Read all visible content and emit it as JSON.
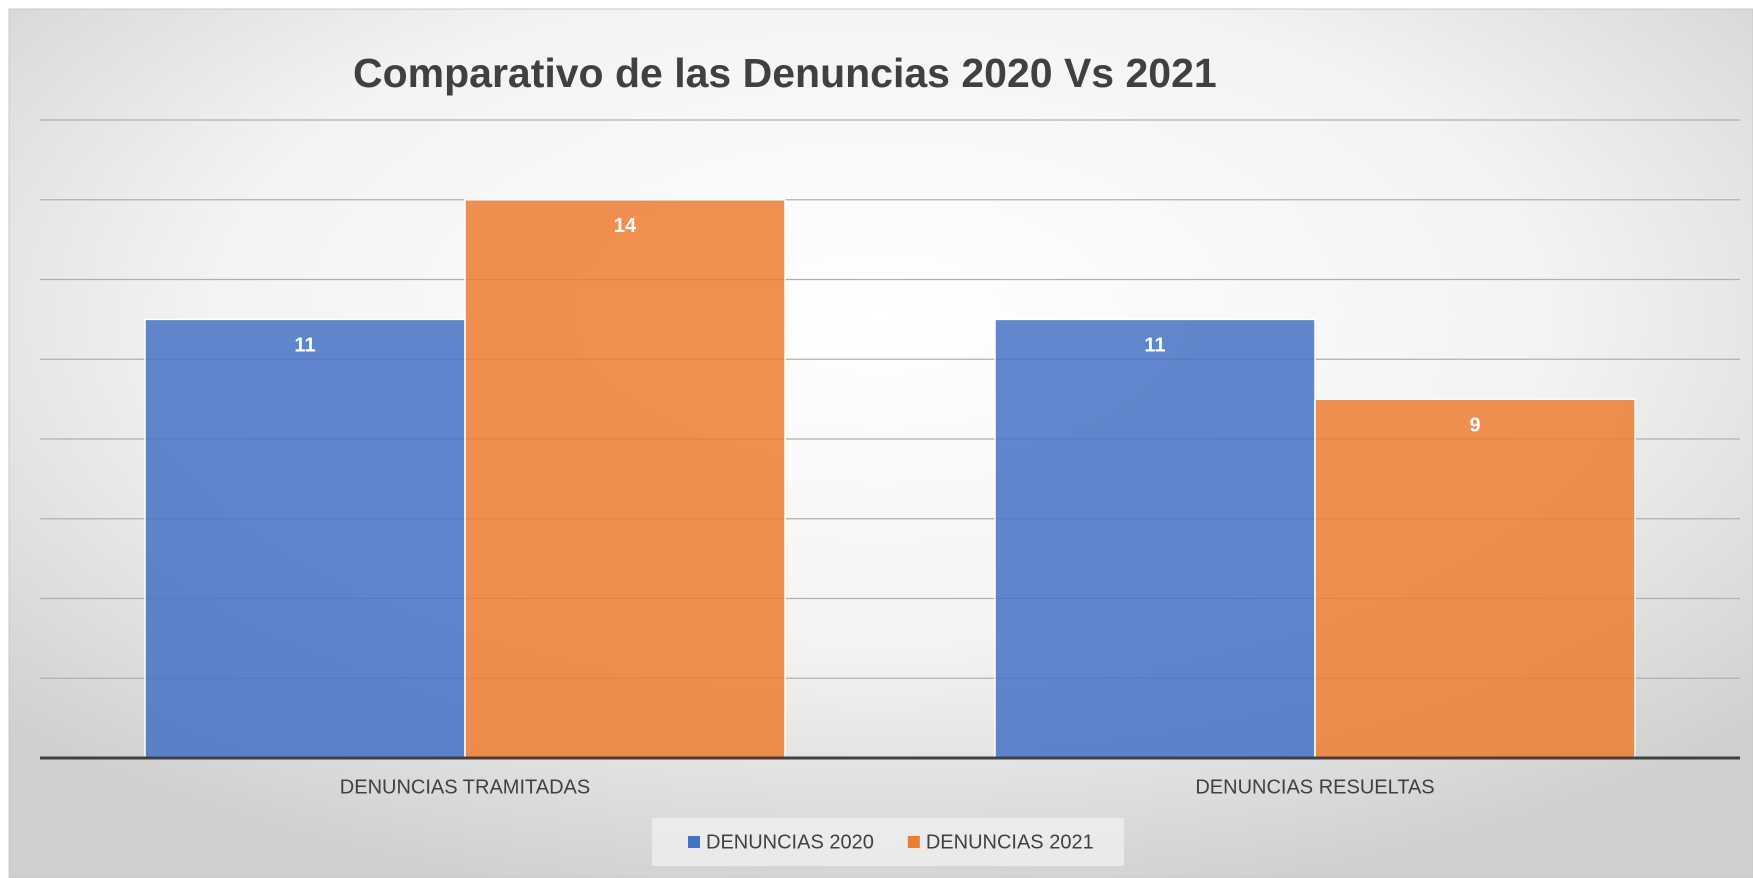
{
  "chart_data": {
    "type": "bar",
    "title": "Comparativo de las Denuncias 2020 Vs 2021",
    "categories": [
      "DENUNCIAS TRAMITADAS",
      "DENUNCIAS RESUELTAS"
    ],
    "series": [
      {
        "name": "DENUNCIAS 2020",
        "color": "#4472c4",
        "values": [
          11,
          11
        ]
      },
      {
        "name": "DENUNCIAS 2021",
        "color": "#ed7d31",
        "values": [
          14,
          9
        ]
      }
    ],
    "ylim": [
      0,
      16
    ],
    "yticks": [
      0,
      2,
      4,
      6,
      8,
      10,
      12,
      14,
      16
    ],
    "grid": true,
    "legend": "bottom"
  }
}
